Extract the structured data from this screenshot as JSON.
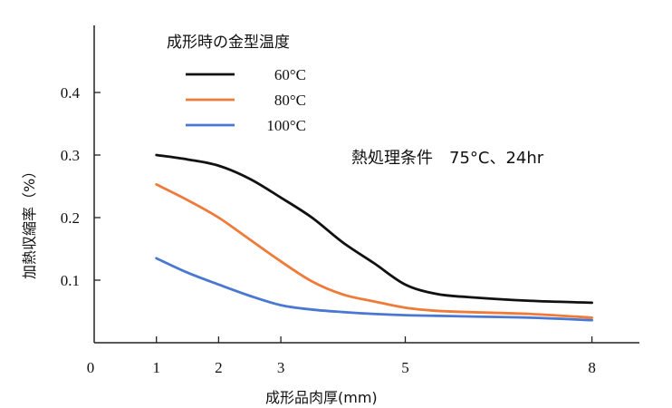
{
  "chart_data": {
    "type": "line",
    "title": "",
    "xlabel": "成形品肉厚(mm)",
    "ylabel": "加熱収縮率（%）",
    "xlim": [
      0,
      8.7
    ],
    "ylim": [
      0,
      0.5
    ],
    "x_ticks": [
      "0",
      "1",
      "2",
      "3",
      "5",
      "8"
    ],
    "y_ticks": [
      "0.1",
      "0.2",
      "0.3",
      "0.4"
    ],
    "legend": {
      "title": "成形時の金型温度",
      "position": "top-left"
    },
    "annotation": "熱処理条件　75°C、24hr",
    "series": [
      {
        "name": "60°C",
        "color": "#111111",
        "x": [
          1,
          1.5,
          2,
          2.5,
          3,
          3.5,
          4,
          4.5,
          5,
          5.5,
          6,
          7,
          8
        ],
        "y": [
          0.3,
          0.293,
          0.283,
          0.262,
          0.232,
          0.2,
          0.16,
          0.127,
          0.093,
          0.078,
          0.073,
          0.067,
          0.064
        ]
      },
      {
        "name": "80°C",
        "color": "#ef7b3a",
        "x": [
          1,
          1.5,
          2,
          2.5,
          3,
          3.5,
          4,
          4.5,
          5,
          5.5,
          6,
          7,
          8
        ],
        "y": [
          0.253,
          0.228,
          0.2,
          0.165,
          0.13,
          0.098,
          0.077,
          0.066,
          0.056,
          0.051,
          0.049,
          0.046,
          0.04
        ]
      },
      {
        "name": "100°C",
        "color": "#4a78d0",
        "x": [
          1,
          1.5,
          2,
          2.5,
          3,
          3.5,
          4,
          4.5,
          5,
          5.5,
          6,
          7,
          8
        ],
        "y": [
          0.135,
          0.112,
          0.093,
          0.075,
          0.06,
          0.053,
          0.049,
          0.046,
          0.044,
          0.043,
          0.042,
          0.04,
          0.036
        ]
      }
    ]
  }
}
